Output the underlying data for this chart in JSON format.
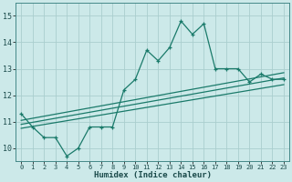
{
  "xlabel": "Humidex (Indice chaleur)",
  "ylabel": "",
  "xlim": [
    -0.5,
    23.5
  ],
  "ylim": [
    9.5,
    15.5
  ],
  "yticks": [
    10,
    11,
    12,
    13,
    14,
    15
  ],
  "xticks": [
    0,
    1,
    2,
    3,
    4,
    5,
    6,
    7,
    8,
    9,
    10,
    11,
    12,
    13,
    14,
    15,
    16,
    17,
    18,
    19,
    20,
    21,
    22,
    23
  ],
  "bg_color": "#cce9e9",
  "line_color": "#1a7a6a",
  "grid_color": "#aacece",
  "main_line_x": [
    0,
    1,
    2,
    3,
    4,
    5,
    6,
    7,
    8,
    9,
    10,
    11,
    12,
    13,
    14,
    15,
    16,
    17,
    18,
    19,
    20,
    21,
    22,
    23
  ],
  "main_line_y": [
    11.3,
    10.8,
    10.4,
    10.4,
    9.7,
    10.0,
    10.8,
    10.8,
    10.8,
    12.2,
    12.6,
    13.7,
    13.3,
    13.8,
    14.8,
    14.3,
    14.7,
    13.0,
    13.0,
    13.0,
    12.5,
    12.8,
    12.6,
    12.6
  ],
  "reg_line1_x": [
    0,
    23
  ],
  "reg_line1_y": [
    10.75,
    12.4
  ],
  "reg_line2_x": [
    0,
    23
  ],
  "reg_line2_y": [
    11.05,
    12.85
  ],
  "reg_line3_x": [
    0,
    23
  ],
  "reg_line3_y": [
    10.9,
    12.65
  ]
}
